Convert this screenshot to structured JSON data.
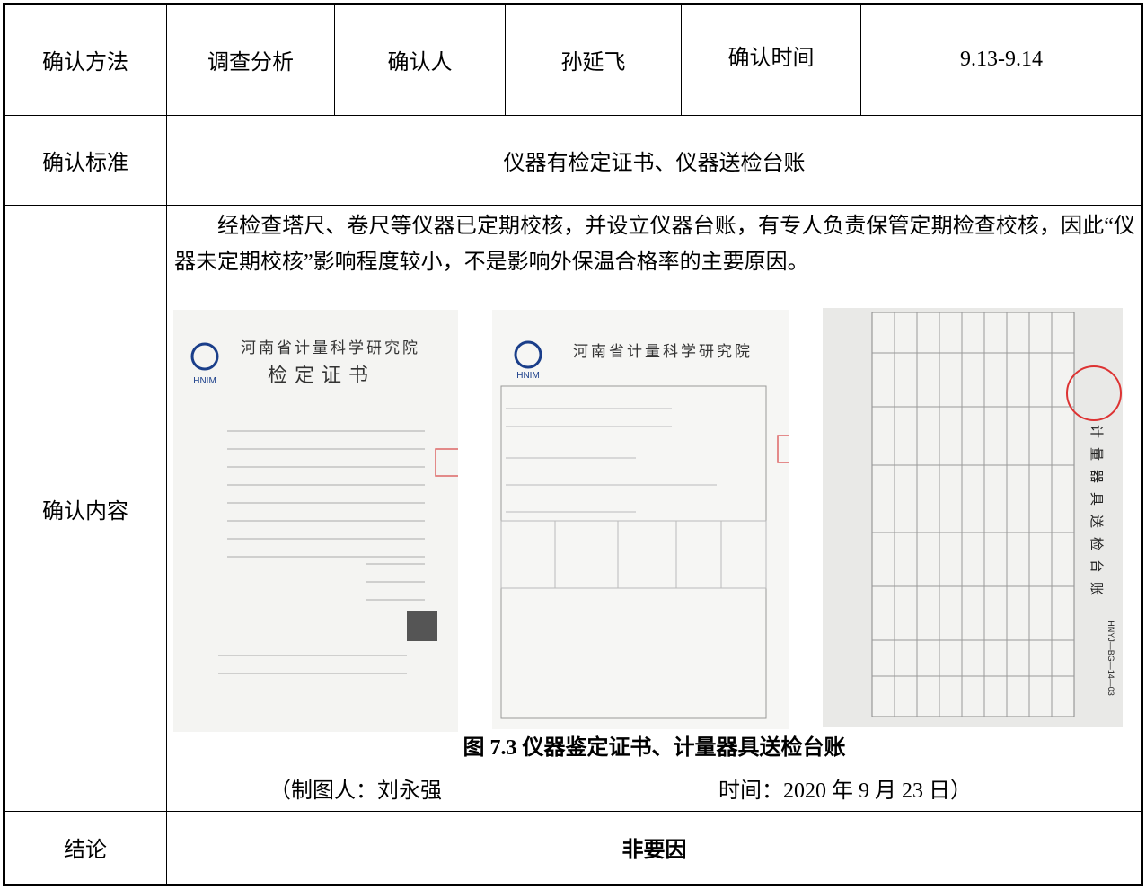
{
  "table": {
    "header": {
      "method_label": "确认方法",
      "method": "调查分析",
      "confirmer_label": "确认人",
      "confirmer": "孙延飞",
      "time_label": "确认时间",
      "time": "9.13-9.14"
    },
    "standard": {
      "label": "确认标准",
      "value": "仪器有检定证书、仪器送检台账"
    },
    "content": {
      "label": "确认内容",
      "paragraph": "经检查塔尺、卷尺等仪器已定期校核，并设立仪器台账，有专人负责保管定期检查校核，因此“仪器未定期校核”影响程度较小，不是影响外保温合格率的主要原因。",
      "figure": {
        "images": [
          {
            "org": "河南省计量科学研究院",
            "logo": "HNIM",
            "title": "检定证书"
          },
          {
            "org": "河南省计量科学研究院",
            "logo": "HNIM"
          },
          {
            "title": "计量器具送检台账",
            "code": "HNYJ—BG—14—03"
          }
        ],
        "caption": "图 7.3 仪器鉴定证书、计量器具送检台账",
        "author": "（制图人：刘永强",
        "date": "时间：2020 年 9 月 23 日）"
      }
    },
    "conclusion": {
      "label": "结论",
      "value": "非要因"
    }
  }
}
